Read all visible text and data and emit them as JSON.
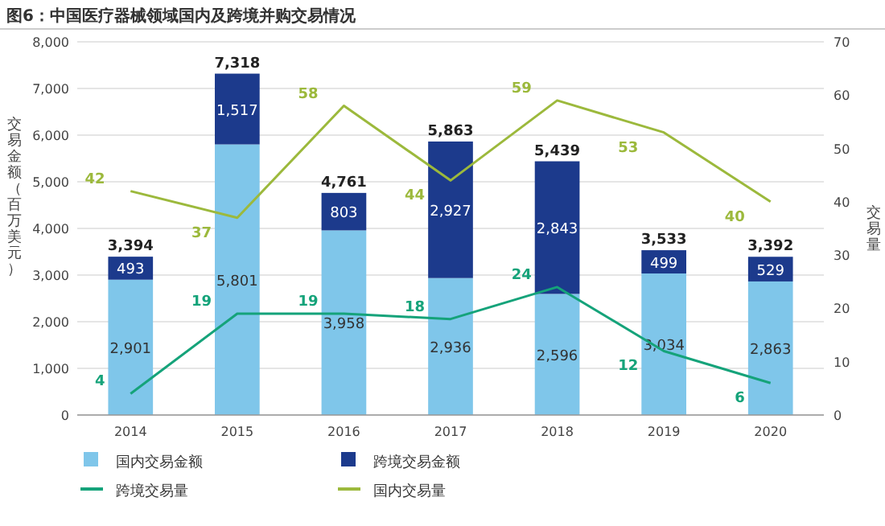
{
  "chart_data": {
    "type": "bar",
    "stacked": true,
    "title": "图6：中国医疗器械领域国内及跨境并购交易情况",
    "ylabel": "交易金额（百万美元）",
    "y2label": "交易量",
    "categories": [
      "2014",
      "2015",
      "2016",
      "2017",
      "2018",
      "2019",
      "2020"
    ],
    "series": [
      {
        "name": "国内交易金额",
        "type": "bar",
        "color": "#7fc6ea",
        "values": [
          2901,
          5801,
          3958,
          2936,
          2596,
          3034,
          2863
        ],
        "value_labels": [
          "2,901",
          "5,801",
          "3,958",
          "2,936",
          "2,596",
          "3,034",
          "2,863"
        ]
      },
      {
        "name": "跨境交易金额",
        "type": "bar",
        "color": "#1c3a8c",
        "values": [
          493,
          1517,
          803,
          2927,
          2843,
          499,
          529
        ],
        "value_labels": [
          "493",
          "1,517",
          "803",
          "2,927",
          "2,843",
          "499",
          "529"
        ]
      },
      {
        "name": "跨境交易量",
        "type": "line",
        "axis": "y2",
        "color": "#15a37a",
        "values": [
          4,
          19,
          19,
          18,
          24,
          12,
          6
        ]
      },
      {
        "name": "国内交易量",
        "type": "line",
        "axis": "y2",
        "color": "#9cb93c",
        "values": [
          42,
          37,
          58,
          44,
          59,
          53,
          40
        ]
      }
    ],
    "totals": [
      "3,394",
      "7,318",
      "4,761",
      "5,863",
      "5,439",
      "3,533",
      "3,392"
    ],
    "data_labels": true,
    "grid": "y",
    "legend": "bottom",
    "ylim": [
      0,
      8000
    ],
    "yticks": [
      {
        "value": 0,
        "label": "0"
      },
      {
        "value": 1000,
        "label": "1,000"
      },
      {
        "value": 2000,
        "label": "2,000"
      },
      {
        "value": 3000,
        "label": "3,000"
      },
      {
        "value": 4000,
        "label": "4,000"
      },
      {
        "value": 5000,
        "label": "5,000"
      },
      {
        "value": 6000,
        "label": "6,000"
      },
      {
        "value": 7000,
        "label": "7,000"
      },
      {
        "value": 8000,
        "label": "8,000"
      }
    ],
    "y2lim": [
      0,
      70
    ],
    "y2ticks": [
      0,
      10,
      20,
      30,
      40,
      50,
      60,
      70
    ]
  }
}
